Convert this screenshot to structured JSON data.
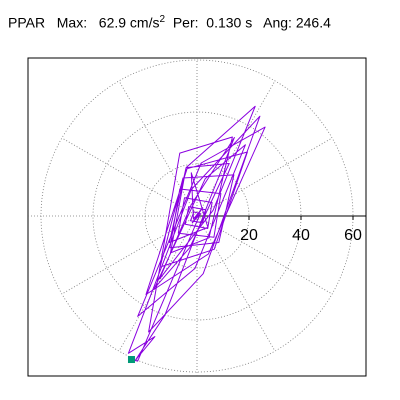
{
  "header": {
    "label": "PPAR",
    "max_label": "Max:",
    "max_value": "62.9 cm/s",
    "max_exp": "2",
    "per_label": "Per:",
    "per_value": "0.130 s",
    "ang_label": "Ang:",
    "ang_value": "246.4"
  },
  "chart_data": {
    "type": "scatter",
    "subtype": "polar-particle-motion",
    "title": "PPAR  Max: 62.9 cm/s2  Per: 0.130 s  Ang: 246.4",
    "radial_ticks": [
      20,
      40,
      60
    ],
    "radial_tick_labels": [
      "20",
      "40",
      "60"
    ],
    "rings": [
      20,
      40,
      60
    ],
    "spokes_deg": [
      0,
      30,
      60,
      90,
      120,
      150,
      180,
      210,
      240,
      270,
      300,
      330
    ],
    "grid": true,
    "max_amplitude": 62.9,
    "peak_angle_deg": 246.4,
    "colors": {
      "trace": "#8a00e0",
      "endpoint": "#009977",
      "grid": "#777777",
      "axis": "#000000"
    },
    "trace_xy": [
      [
        0,
        0
      ],
      [
        1.5,
        0.8
      ],
      [
        -1.2,
        1.6
      ],
      [
        -2.5,
        -1.8
      ],
      [
        2.2,
        -2.6
      ],
      [
        3.4,
        2.4
      ],
      [
        -3.2,
        3.6
      ],
      [
        -4.5,
        -3.2
      ],
      [
        4.1,
        -4.8
      ],
      [
        5.8,
        5.2
      ],
      [
        -4.8,
        7.0
      ],
      [
        -7.2,
        -6.6
      ],
      [
        6.5,
        -8.2
      ],
      [
        9.2,
        8.6
      ],
      [
        -6.6,
        10.4
      ],
      [
        -10.4,
        -12.2
      ],
      [
        8.4,
        -10.2
      ],
      [
        14.2,
        15.8
      ],
      [
        -5.4,
        14.6
      ],
      [
        -14.2,
        -19.6
      ],
      [
        6.6,
        -12.8
      ],
      [
        19.4,
        24.6
      ],
      [
        -3.8,
        18.2
      ],
      [
        -19.6,
        -30.2
      ],
      [
        4.4,
        -14.6
      ],
      [
        26.2,
        34.2
      ],
      [
        1.6,
        20.4
      ],
      [
        -22.8,
        -38.6
      ],
      [
        -0.8,
        -20.2
      ],
      [
        18.6,
        27.4
      ],
      [
        3.2,
        14.4
      ],
      [
        -16.4,
        -27.8
      ],
      [
        -2.8,
        -12.2
      ],
      [
        12.4,
        20.2
      ],
      [
        -4.2,
        18.6
      ],
      [
        -10.2,
        -14.2
      ],
      [
        4.6,
        -8.4
      ],
      [
        13.6,
        30.4
      ],
      [
        -6.6,
        24.2
      ],
      [
        -18.6,
        -44.6
      ],
      [
        2.4,
        -22.2
      ],
      [
        24.2,
        38.4
      ],
      [
        -2.2,
        10.2
      ],
      [
        -26.4,
        -52.8
      ],
      [
        -16.2,
        -46.4
      ],
      [
        -23.8,
        -55.6
      ],
      [
        -12.4,
        -38.2
      ],
      [
        4.2,
        4.6
      ],
      [
        14.4,
        30.2
      ],
      [
        -2.2,
        4.4
      ],
      [
        -14.4,
        -24.2
      ],
      [
        6.2,
        2.2
      ],
      [
        22.4,
        42.2
      ],
      [
        -4.2,
        18.6
      ],
      [
        -10.6,
        -10.2
      ],
      [
        4.2,
        -4.4
      ],
      [
        -2.2,
        16.6
      ],
      [
        -1.4,
        -1.2
      ],
      [
        2.2,
        3.2
      ],
      [
        -1.8,
        -2.6
      ],
      [
        1.1,
        0.6
      ],
      [
        -22.8,
        -55.8
      ],
      [
        -25.2,
        -55.2
      ]
    ],
    "endpoint_xy": [
      -25.2,
      -55.2
    ]
  }
}
